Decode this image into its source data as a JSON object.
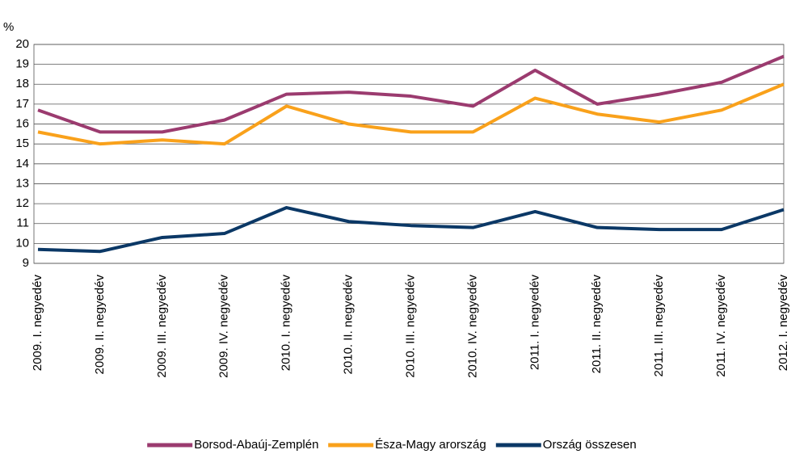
{
  "chart_data": {
    "type": "line",
    "y_label": "%",
    "categories": [
      "2009. I. negyedév",
      "2009. II. negyedév",
      "2009. III. negyedév",
      "2009. IV. negyedév",
      "2010. I. negyedév",
      "2010. II. negyedév",
      "2010. III. negyedév",
      "2010. IV. negyedév",
      "2011. I. negyedév",
      "2011. II. negyedév",
      "2011. III. negyedév",
      "2011. IV. negyedév",
      "2012. I. negyedév"
    ],
    "series": [
      {
        "name": "Borsod-Abaúj-Zemplén",
        "color": "#9b3b6f",
        "values": [
          16.7,
          15.6,
          15.6,
          16.2,
          17.5,
          17.6,
          17.4,
          16.9,
          18.7,
          17.0,
          17.5,
          18.1,
          19.4
        ]
      },
      {
        "name": "Észa-Magy arország",
        "color": "#f9a11b",
        "values": [
          15.6,
          15.0,
          15.2,
          15.0,
          16.9,
          16.0,
          15.6,
          15.6,
          17.3,
          16.5,
          16.1,
          16.7,
          18.0
        ]
      },
      {
        "name": "Ország összesen",
        "color": "#0b3866",
        "values": [
          9.7,
          9.6,
          10.3,
          10.5,
          11.8,
          11.1,
          10.9,
          10.8,
          11.6,
          10.8,
          10.7,
          10.7,
          11.7
        ]
      }
    ],
    "ylim": [
      9,
      20
    ],
    "yticks": [
      9,
      10,
      11,
      12,
      13,
      14,
      15,
      16,
      17,
      18,
      19,
      20
    ],
    "grid": true
  }
}
